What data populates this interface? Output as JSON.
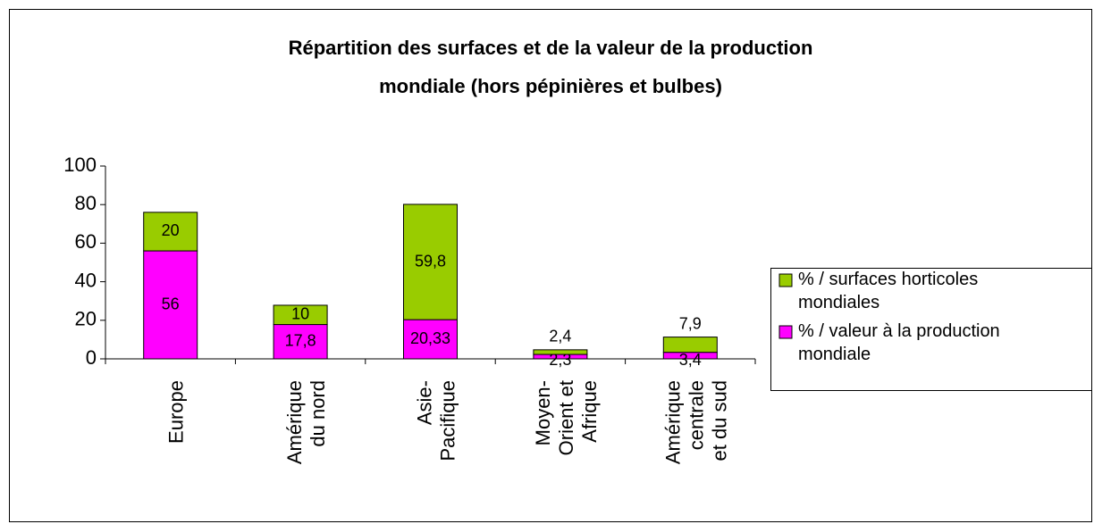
{
  "chart_data": {
    "type": "bar",
    "stacked": true,
    "title": "Répartition des surfaces et de la valeur de la production mondiale (hors pépinières et bulbes)",
    "categories": [
      "Europe",
      "Amérique du nord",
      "Asie-Pacifique",
      "Moyen-Orient et Afrique",
      "Amérique centrale et du sud"
    ],
    "series": [
      {
        "name": "% / valeur à la production mondiale",
        "color": "#ff00ff",
        "values": [
          56,
          17.8,
          20.33,
          2.3,
          3.4
        ],
        "value_labels": [
          "56",
          "17,8",
          "20,33",
          "2,3",
          "3,4"
        ]
      },
      {
        "name": "% / surfaces horticoles mondiales",
        "color": "#99cc00",
        "values": [
          20,
          10,
          59.8,
          2.4,
          7.9
        ],
        "value_labels": [
          "20",
          "10",
          "59,8",
          "2,4",
          "7,9"
        ]
      }
    ],
    "ylim": [
      0,
      100
    ],
    "yticks": [
      0,
      20,
      40,
      60,
      80,
      100
    ],
    "grid": false,
    "legend": "right"
  }
}
